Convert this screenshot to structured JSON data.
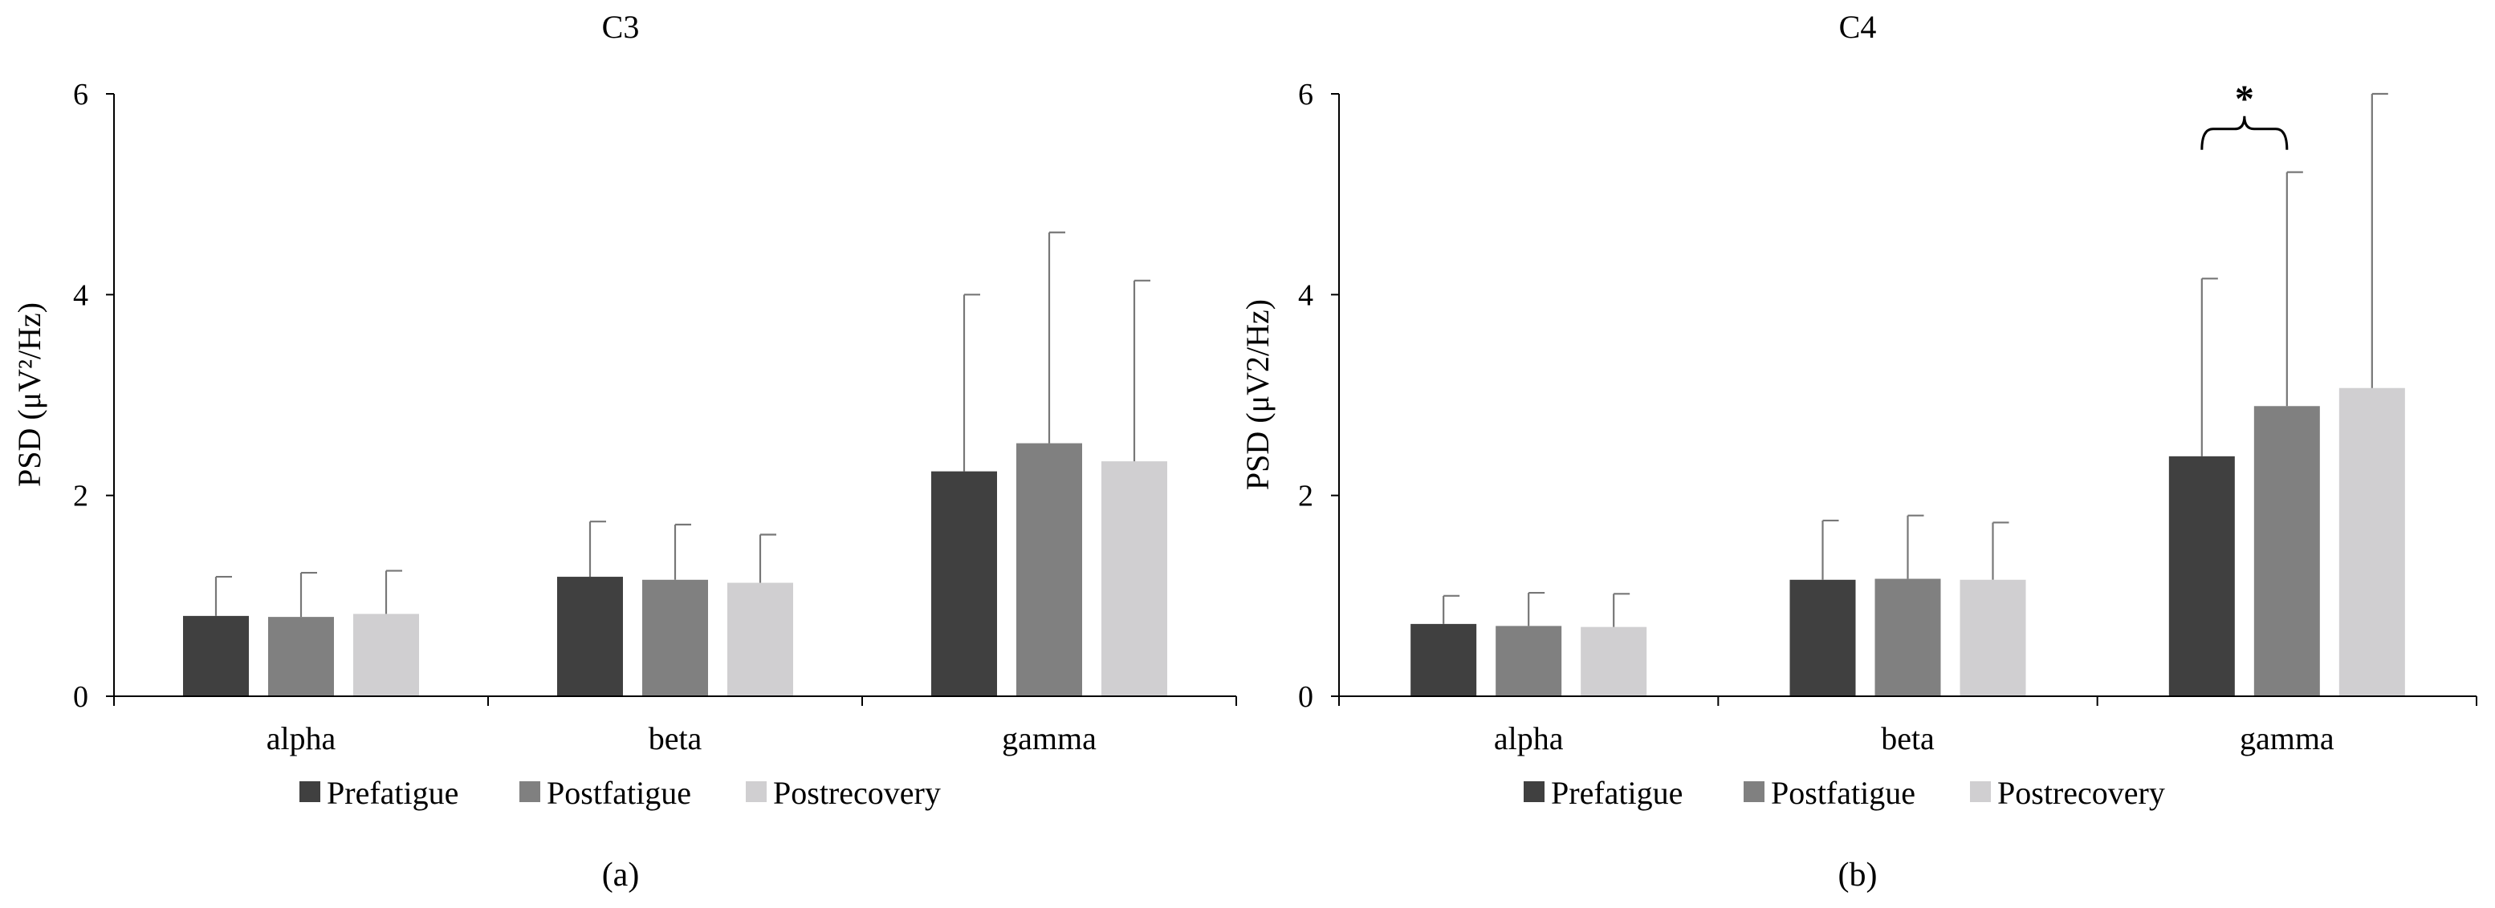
{
  "chart_data": [
    {
      "type": "bar",
      "title": "C3",
      "panel_label": "(a)",
      "ylabel": "PSD (μV²/Hz)",
      "xlabel": "",
      "ylim": [
        0,
        6
      ],
      "yticks": [
        "0",
        "2",
        "4",
        "6"
      ],
      "categories": [
        "alpha",
        "beta",
        "gamma"
      ],
      "series": [
        {
          "name": "Prefatigue",
          "color": "#404040",
          "values": [
            0.8,
            1.19,
            2.24
          ],
          "errors": [
            0.39,
            0.55,
            1.76
          ]
        },
        {
          "name": "Postfatigue",
          "color": "#808080",
          "values": [
            0.79,
            1.16,
            2.52
          ],
          "errors": [
            0.44,
            0.55,
            2.1
          ]
        },
        {
          "name": "Postrecovery",
          "color": "#d0cfd1",
          "values": [
            0.82,
            1.13,
            2.34
          ],
          "errors": [
            0.43,
            0.48,
            1.8
          ]
        }
      ],
      "legend_position": "bottom",
      "annotations": []
    },
    {
      "type": "bar",
      "title": "C4",
      "panel_label": "(b)",
      "ylabel": "PSD (μV2/Hz)",
      "xlabel": "",
      "ylim": [
        0,
        6
      ],
      "yticks": [
        "0",
        "2",
        "4",
        "6"
      ],
      "categories": [
        "alpha",
        "beta",
        "gamma"
      ],
      "series": [
        {
          "name": "Prefatigue",
          "color": "#404040",
          "values": [
            0.72,
            1.16,
            2.39
          ],
          "errors": [
            0.28,
            0.59,
            1.77
          ]
        },
        {
          "name": "Postfatigue",
          "color": "#808080",
          "values": [
            0.7,
            1.17,
            2.89
          ],
          "errors": [
            0.33,
            0.63,
            2.33
          ]
        },
        {
          "name": "Postrecovery",
          "color": "#d0cfd1",
          "values": [
            0.69,
            1.16,
            3.07
          ],
          "errors": [
            0.33,
            0.57,
            2.94
          ]
        }
      ],
      "legend_position": "bottom",
      "annotations": [
        {
          "text": "*",
          "category": "gamma",
          "from_series": 0,
          "to_series": 1,
          "at_value": 5.65
        }
      ]
    }
  ]
}
